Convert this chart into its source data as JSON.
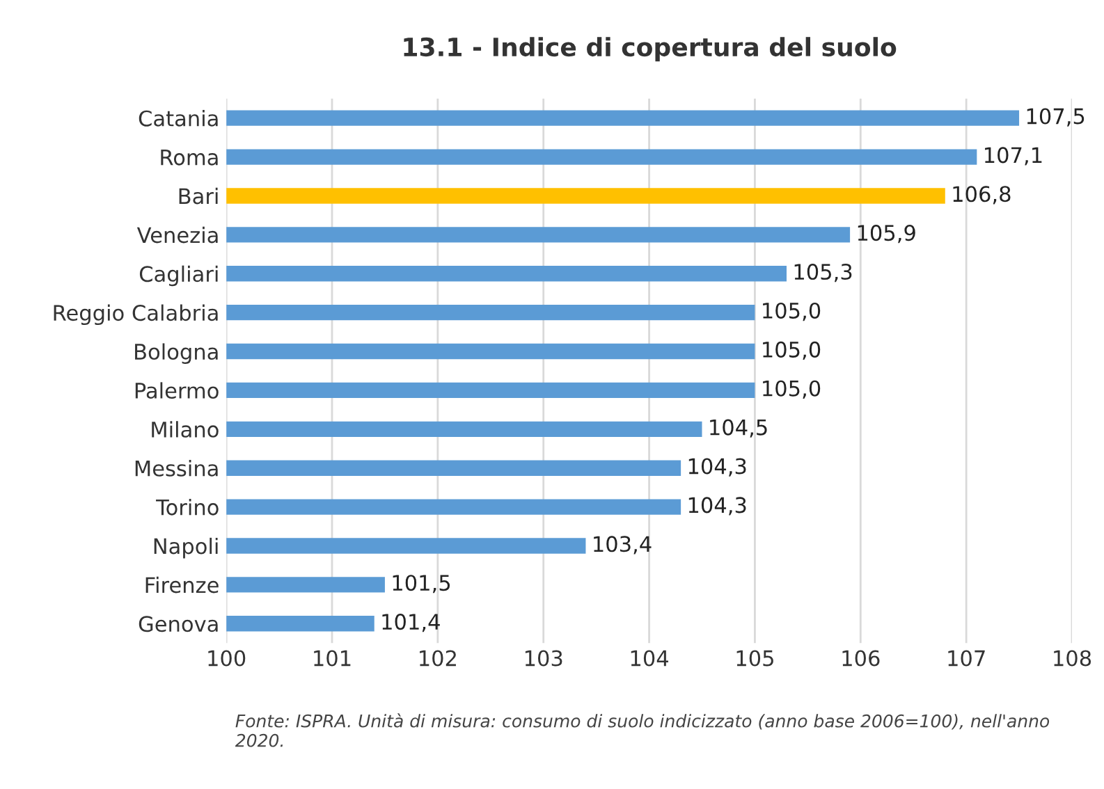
{
  "chart_data": {
    "type": "bar",
    "orientation": "horizontal",
    "title": "13.1 - Indice di copertura del suolo",
    "categories": [
      "Catania",
      "Roma",
      "Bari",
      "Venezia",
      "Cagliari",
      "Reggio Calabria",
      "Bologna",
      "Palermo",
      "Milano",
      "Messina",
      "Torino",
      "Napoli",
      "Firenze",
      "Genova"
    ],
    "values": [
      107.5,
      107.1,
      106.8,
      105.9,
      105.3,
      105.0,
      105.0,
      105.0,
      104.5,
      104.3,
      104.3,
      103.4,
      101.5,
      101.4
    ],
    "value_labels": [
      "107,5",
      "107,1",
      "106,8",
      "105,9",
      "105,3",
      "105,0",
      "105,0",
      "105,0",
      "104,5",
      "104,3",
      "104,3",
      "103,4",
      "101,5",
      "101,4"
    ],
    "colors": [
      "#5b9bd5",
      "#5b9bd5",
      "#ffc000",
      "#5b9bd5",
      "#5b9bd5",
      "#5b9bd5",
      "#5b9bd5",
      "#5b9bd5",
      "#5b9bd5",
      "#5b9bd5",
      "#5b9bd5",
      "#5b9bd5",
      "#5b9bd5",
      "#5b9bd5"
    ],
    "xlim": [
      100,
      108
    ],
    "xticks": [
      100,
      101,
      102,
      103,
      104,
      105,
      106,
      107,
      108
    ],
    "grid": "x",
    "annotations": [
      "Fonte: ISPRA. Unità di misura: consumo di suolo indicizzato (anno base 2006=100), nell'anno 2020."
    ]
  }
}
